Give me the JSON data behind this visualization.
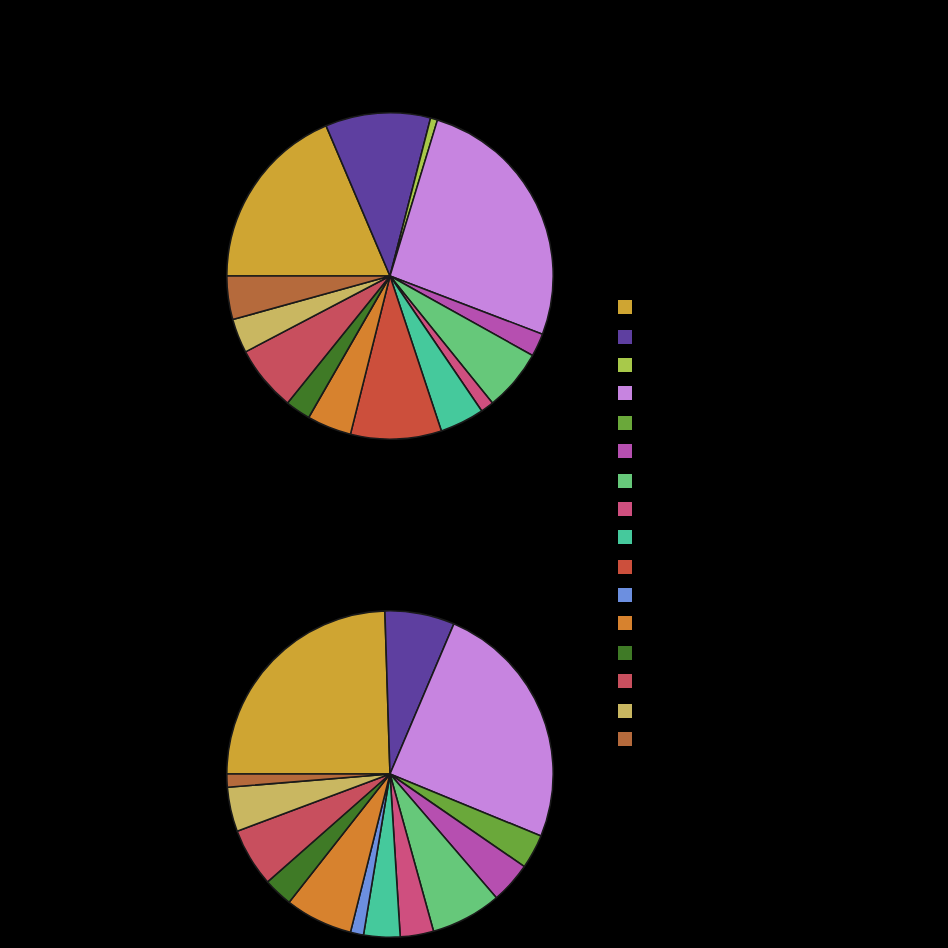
{
  "chart_data": [
    {
      "type": "pie",
      "categories": [
        null,
        null,
        null,
        null,
        null,
        null,
        null,
        null,
        null,
        null,
        null,
        null,
        null,
        null,
        null,
        null
      ],
      "values": [
        18.6,
        10.4,
        0.7,
        26.1,
        0,
        2.3,
        6.1,
        1.3,
        4.4,
        9.0,
        0,
        4.4,
        2.5,
        6.5,
        3.4,
        4.3
      ],
      "colors": [
        "#cfa532",
        "#5e3fa0",
        "#a8c94a",
        "#c784e0",
        "#6aa83a",
        "#b64fb0",
        "#66c87a",
        "#cf4f7f",
        "#45c99c",
        "#cc4f3c",
        "#6c8fe0",
        "#d7822e",
        "#3f7a26",
        "#c84f5e",
        "#c9b761",
        "#b56a3c"
      ]
    },
    {
      "type": "pie",
      "categories": [
        null,
        null,
        null,
        null,
        null,
        null,
        null,
        null,
        null,
        null,
        null,
        null,
        null,
        null,
        null,
        null
      ],
      "values": [
        24.5,
        6.9,
        0,
        24.8,
        3.4,
        4.1,
        7.0,
        3.3,
        3.6,
        0,
        1.3,
        6.7,
        2.9,
        5.8,
        4.4,
        1.3
      ],
      "colors": [
        "#cfa532",
        "#5e3fa0",
        "#a8c94a",
        "#c784e0",
        "#6aa83a",
        "#b64fb0",
        "#66c87a",
        "#cf4f7f",
        "#45c99c",
        "#cc4f3c",
        "#6c8fe0",
        "#d7822e",
        "#3f7a26",
        "#c84f5e",
        "#c9b761",
        "#b56a3c"
      ]
    }
  ]
}
